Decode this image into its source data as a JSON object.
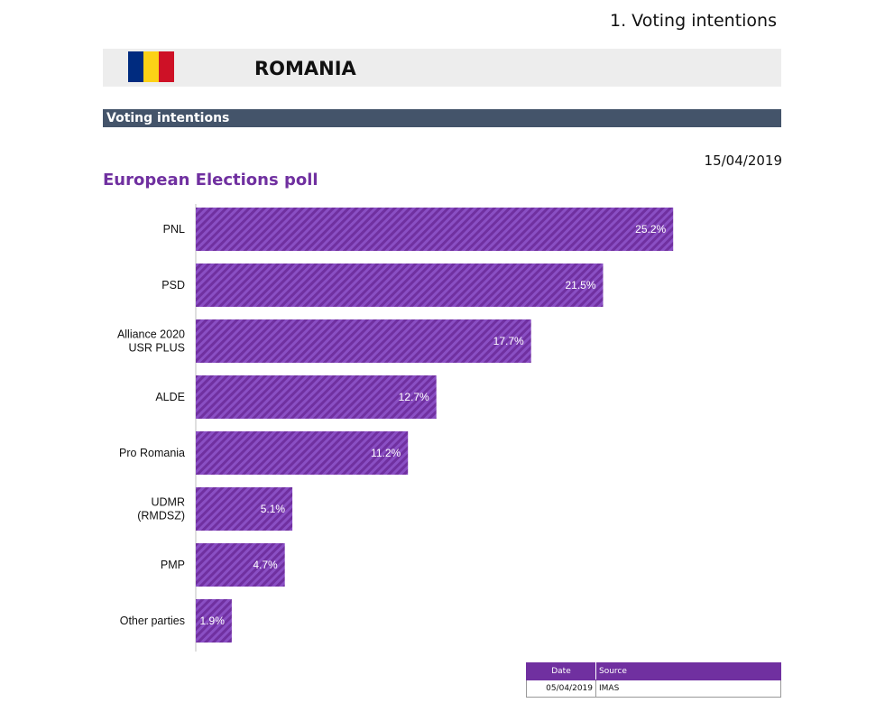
{
  "page": {
    "heading": "1. Voting intentions"
  },
  "country": {
    "name": "ROMANIA",
    "flag_colors": [
      "#002b7f",
      "#fcd116",
      "#ce1126"
    ]
  },
  "section": {
    "title": "Voting intentions"
  },
  "poll": {
    "date": "15/04/2019",
    "title": "European Elections poll"
  },
  "colors": {
    "accent": "#7030a0",
    "bar_stripe": "#8a4fc4",
    "section_bg": "#44546a"
  },
  "chart_data": {
    "type": "bar",
    "orientation": "horizontal",
    "title": "European Elections poll",
    "unit": "%",
    "xlim": [
      0,
      30
    ],
    "categories": [
      [
        "PNL"
      ],
      [
        "PSD"
      ],
      [
        "Alliance 2020",
        "USR PLUS"
      ],
      [
        "ALDE"
      ],
      [
        "Pro Romania"
      ],
      [
        "UDMR",
        "(RMDSZ)"
      ],
      [
        "PMP"
      ],
      [
        "Other parties"
      ]
    ],
    "values": [
      25.2,
      21.5,
      17.7,
      12.7,
      11.2,
      5.1,
      4.7,
      1.9
    ],
    "value_labels": [
      "25.2%",
      "21.5%",
      "17.7%",
      "12.7%",
      "11.2%",
      "5.1%",
      "4.7%",
      "1.9%"
    ]
  },
  "source_table": {
    "headers": {
      "date": "Date",
      "source": "Source"
    },
    "rows": [
      {
        "date": "05/04/2019",
        "source": "IMAS"
      }
    ]
  }
}
